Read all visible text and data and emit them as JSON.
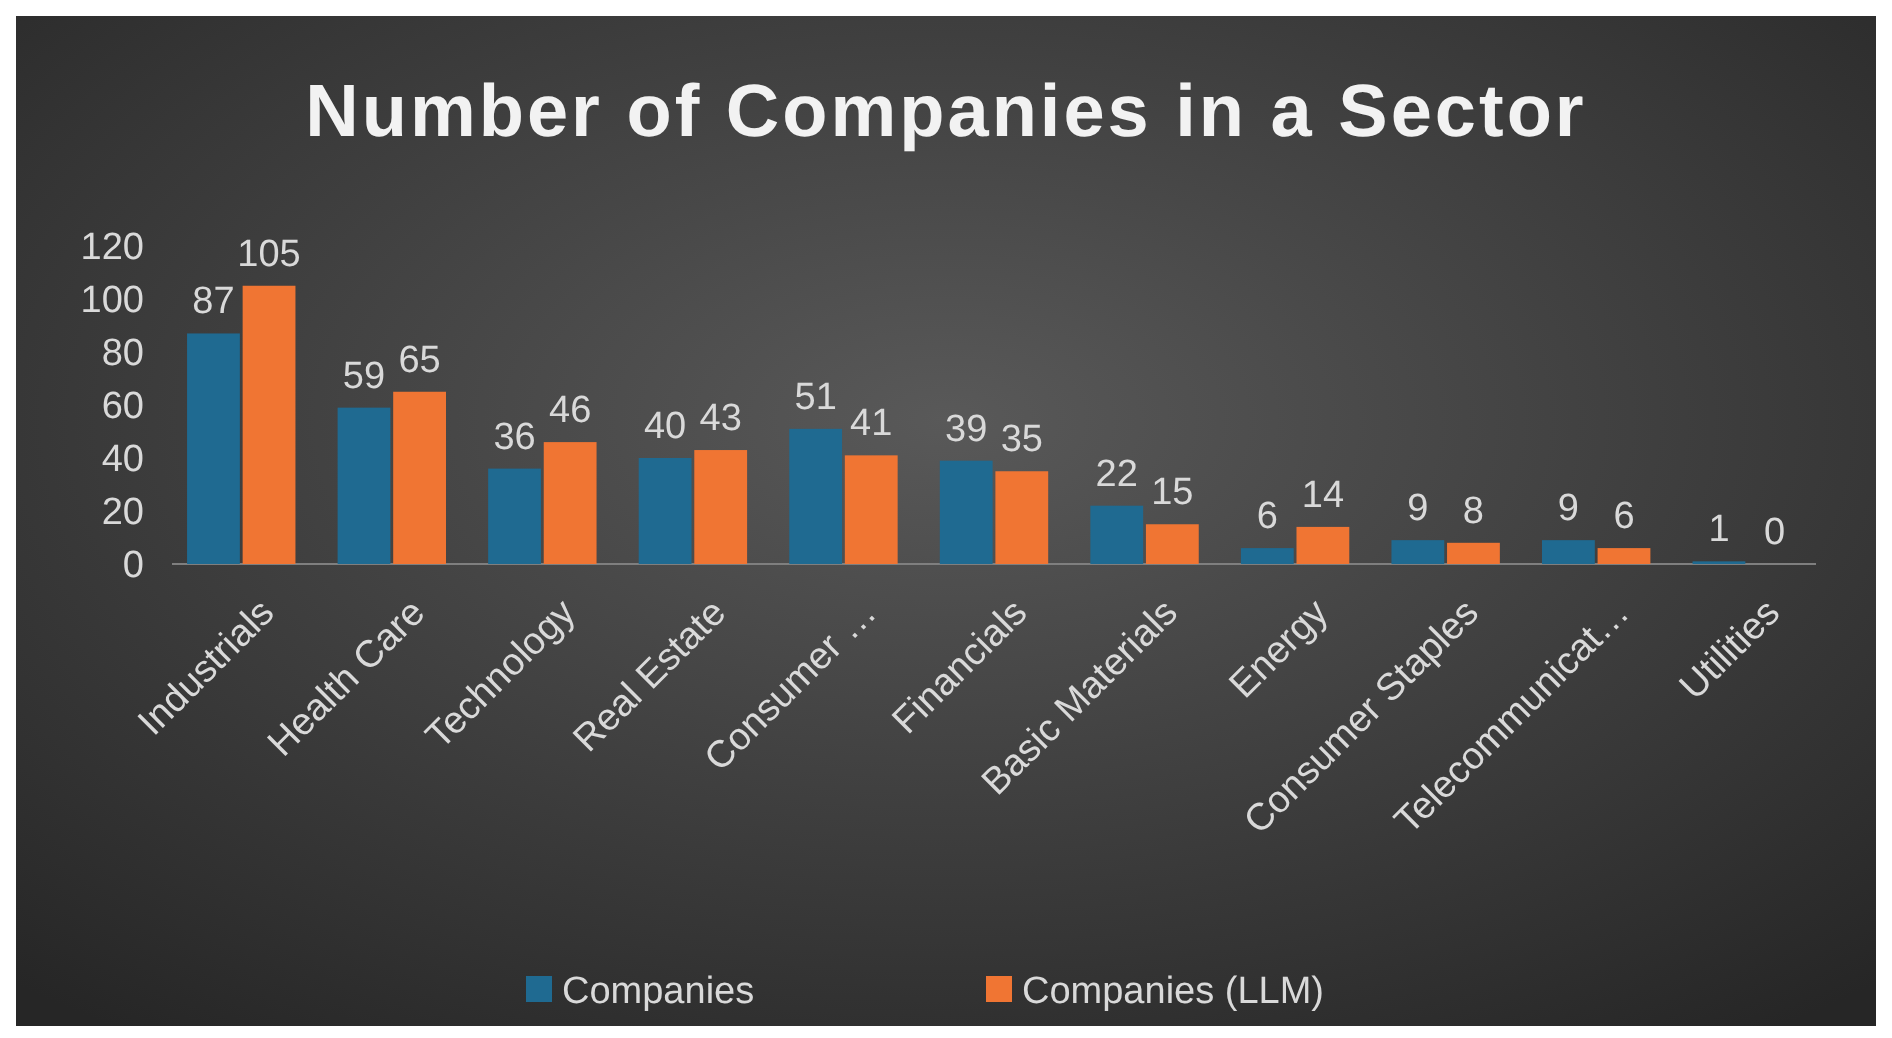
{
  "chart_data": {
    "type": "bar",
    "title": "Number of Companies in a Sector",
    "categories": [
      "Industrials",
      "Health Care",
      "Technology",
      "Real Estate",
      "Consumer …",
      "Financials",
      "Basic Materials",
      "Energy",
      "Consumer Staples",
      "Telecommunicat…",
      "Utilities"
    ],
    "series": [
      {
        "name": "Companies",
        "color": "#1f6a91",
        "values": [
          87,
          59,
          36,
          40,
          51,
          39,
          22,
          6,
          9,
          9,
          1
        ]
      },
      {
        "name": "Companies (LLM)",
        "color": "#f07533",
        "values": [
          105,
          65,
          46,
          43,
          41,
          35,
          15,
          14,
          8,
          6,
          0
        ]
      }
    ],
    "ylim": [
      0,
      120
    ],
    "yticks": [
      0,
      20,
      40,
      60,
      80,
      100,
      120
    ],
    "grid": false,
    "legend": "bottom",
    "data_labels": true
  }
}
